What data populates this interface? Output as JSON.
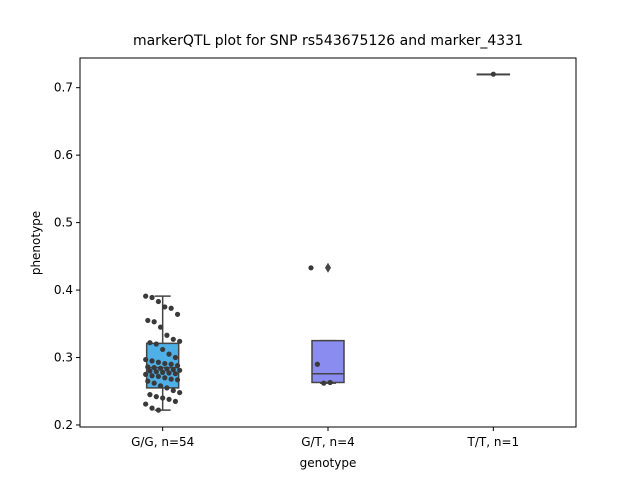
{
  "chart_data": {
    "type": "box",
    "title": "markerQTL plot for SNP rs543675126 and marker_4331",
    "x_label": "genotype",
    "y_label": "phenotype",
    "categories": [
      "G/G, n=54",
      "G/T, n=4",
      "T/T, n=1"
    ],
    "boxes": [
      {
        "min": 0.222,
        "q1": 0.255,
        "median": 0.285,
        "q3": 0.321,
        "max": 0.391,
        "outliers": [],
        "color": "#4fb0e8"
      },
      {
        "min": 0.262,
        "q1": 0.263,
        "median": 0.276,
        "q3": 0.325,
        "max": 0.325,
        "outliers": [
          0.433
        ],
        "color": "#8a8cf0"
      },
      {
        "min": 0.72,
        "q1": 0.72,
        "median": 0.72,
        "q3": 0.72,
        "max": 0.72,
        "outliers": [],
        "color": "#6fd58c"
      }
    ],
    "points": [
      [
        0.391,
        0.389,
        0.383,
        0.375,
        0.373,
        0.364,
        0.355,
        0.353,
        0.345,
        0.333,
        0.327,
        0.324,
        0.322,
        0.32,
        0.312,
        0.305,
        0.3,
        0.297,
        0.295,
        0.293,
        0.291,
        0.29,
        0.288,
        0.286,
        0.285,
        0.284,
        0.283,
        0.282,
        0.281,
        0.28,
        0.279,
        0.278,
        0.277,
        0.276,
        0.275,
        0.273,
        0.272,
        0.27,
        0.268,
        0.267,
        0.265,
        0.262,
        0.258,
        0.255,
        0.251,
        0.248,
        0.245,
        0.242,
        0.24,
        0.238,
        0.235,
        0.231,
        0.225,
        0.222
      ],
      [
        0.433,
        0.29,
        0.262,
        0.263
      ],
      [
        0.72
      ]
    ],
    "point_color": "#3a3a3a",
    "ylim": [
      0.197,
      0.744
    ],
    "yticks": [
      0.2,
      0.3,
      0.4,
      0.5,
      0.6,
      0.7
    ]
  }
}
